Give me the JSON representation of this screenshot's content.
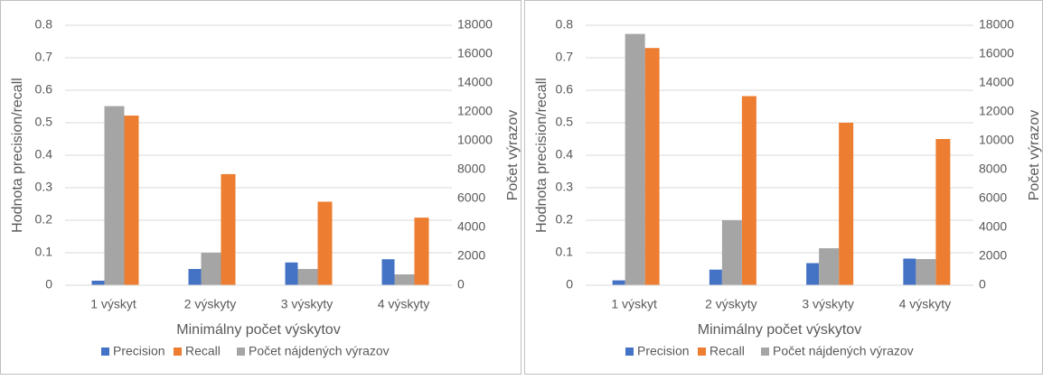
{
  "chart_data": [
    {
      "type": "bar",
      "categories": [
        "1 výskyt",
        "2 výskyty",
        "3 výskyty",
        "4 výskyty"
      ],
      "x_label": "Minimálny počet výskytov",
      "y_label": "Hodnota precision/recall",
      "y2_label": "Počet výrazov",
      "ylim": [
        0,
        0.8
      ],
      "yticks": [
        0,
        0.1,
        0.2,
        0.3,
        0.4,
        0.5,
        0.6,
        0.7,
        0.8
      ],
      "y2lim": [
        0,
        18000
      ],
      "y2ticks": [
        0,
        2000,
        4000,
        6000,
        8000,
        10000,
        12000,
        14000,
        16000,
        18000
      ],
      "grid": true,
      "legend": "bottom",
      "series": [
        {
          "name": "Precision",
          "color": "#4472c4",
          "values": [
            0.014,
            0.05,
            0.07,
            0.08
          ]
        },
        {
          "name": "Recall",
          "color": "#ed7d31",
          "values": [
            0.522,
            0.342,
            0.257,
            0.208
          ]
        },
        {
          "name": "Počet nájdených výrazov",
          "color": "#a5a5a5",
          "axis": "y2",
          "values": [
            12400,
            2250,
            1125,
            750
          ]
        }
      ]
    },
    {
      "type": "bar",
      "categories": [
        "1 výskyt",
        "2 výskyty",
        "3 výskyty",
        "4 výskyty"
      ],
      "x_label": "Minimálny počet výskytov",
      "y_label": "Hodnota precision/recall",
      "y2_label": "Počet výrazov",
      "ylim": [
        0,
        0.8
      ],
      "yticks": [
        0,
        0.1,
        0.2,
        0.3,
        0.4,
        0.5,
        0.6,
        0.7,
        0.8
      ],
      "y2lim": [
        0,
        18000
      ],
      "y2ticks": [
        0,
        2000,
        4000,
        6000,
        8000,
        10000,
        12000,
        14000,
        16000,
        18000
      ],
      "grid": true,
      "legend": "bottom",
      "series": [
        {
          "name": "Precision",
          "color": "#4472c4",
          "values": [
            0.015,
            0.048,
            0.068,
            0.082
          ]
        },
        {
          "name": "Recall",
          "color": "#ed7d31",
          "values": [
            0.73,
            0.582,
            0.5,
            0.45
          ]
        },
        {
          "name": "Počet nájdených výrazov",
          "color": "#a5a5a5",
          "axis": "y2",
          "values": [
            17400,
            4500,
            2560,
            1810
          ]
        }
      ]
    }
  ]
}
